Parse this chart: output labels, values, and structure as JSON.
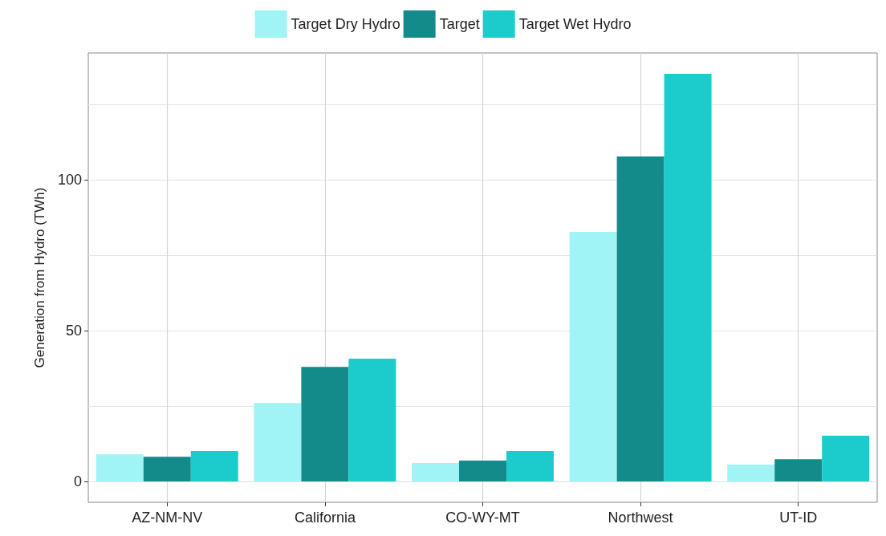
{
  "chart_data": {
    "type": "bar",
    "ylabel": "Generation from Hydro (TWh)",
    "categories": [
      "AZ-NM-NV",
      "California",
      "CO-WY-MT",
      "Northwest",
      "UT-ID"
    ],
    "series": [
      {
        "name": "Target Dry Hydro",
        "color": "#a0f4f6",
        "values": [
          9.0,
          26.0,
          6.1,
          82.7,
          5.6
        ]
      },
      {
        "name": "Target",
        "color": "#148b8b",
        "values": [
          8.2,
          38.0,
          6.9,
          107.7,
          7.4
        ]
      },
      {
        "name": "Target Wet Hydro",
        "color": "#1ccbcb",
        "values": [
          10.1,
          40.7,
          10.1,
          135.1,
          15.2
        ]
      }
    ],
    "ylim": [
      -6.9,
      142
    ],
    "yticks": [
      0,
      {
        "value": 25,
        "label": null
      },
      50,
      {
        "value": 75,
        "label": null
      },
      100,
      {
        "value": 125,
        "label": null
      }
    ],
    "grid": true,
    "legend": "top"
  }
}
